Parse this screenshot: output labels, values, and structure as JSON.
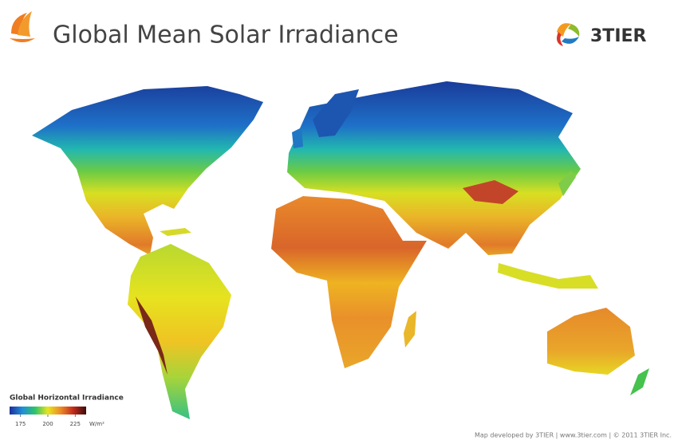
{
  "header": {
    "title": "Global Mean Solar Irradiance",
    "brand": "3TIER"
  },
  "legend": {
    "title": "Global Horizontal Irradiance",
    "range": [
      165,
      235
    ],
    "ticks": [
      175,
      200,
      225
    ],
    "unit": "W/m²",
    "colors": [
      "#1c2f9c",
      "#1f8fd6",
      "#2fc36a",
      "#e8e41e",
      "#ec8a26",
      "#c02a1c",
      "#3a0d0a"
    ]
  },
  "footer": {
    "credit": "Map developed by 3TIER  |  www.3tier.com  |  © 2011 3TIER Inc."
  }
}
